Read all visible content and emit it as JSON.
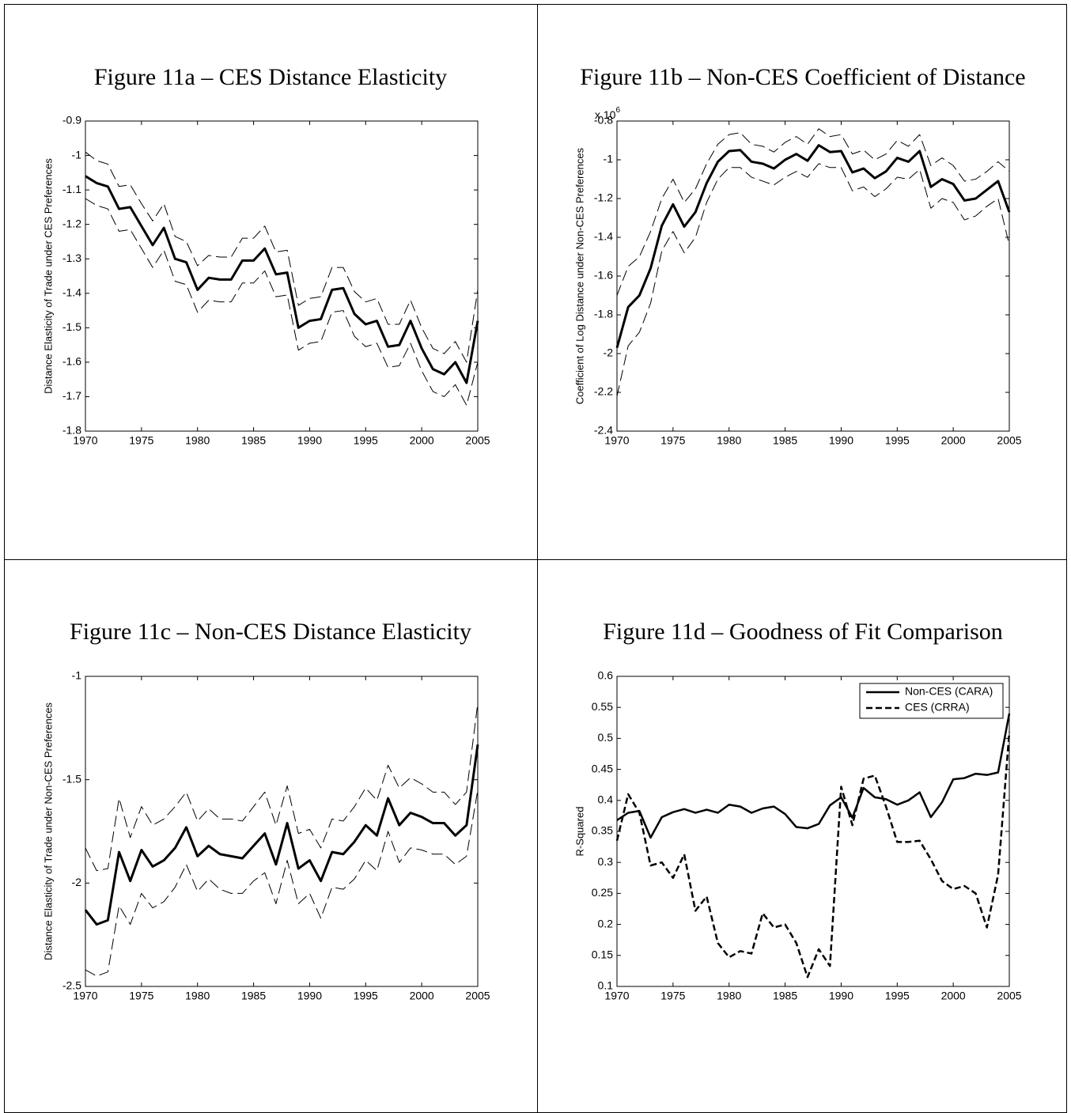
{
  "chart_data": [
    {
      "type": "line",
      "title": "Figure 11a – CES Distance Elasticity",
      "y_label": "Distance Elasticity of Trade under CES Preferences",
      "x": [
        1970,
        1971,
        1972,
        1973,
        1974,
        1975,
        1976,
        1977,
        1978,
        1979,
        1980,
        1981,
        1982,
        1983,
        1984,
        1985,
        1986,
        1987,
        1988,
        1989,
        1990,
        1991,
        1992,
        1993,
        1994,
        1995,
        1996,
        1997,
        1998,
        1999,
        2000,
        2001,
        2002,
        2003,
        2004,
        2005
      ],
      "xlim": [
        1970,
        2005
      ],
      "xticks": [
        1970,
        1975,
        1980,
        1985,
        1990,
        1995,
        2000,
        2005
      ],
      "ylim": [
        -1.8,
        -0.9
      ],
      "yticks": [
        -1.8,
        -1.7,
        -1.6,
        -1.5,
        -1.4,
        -1.3,
        -1.2,
        -1.1,
        -1,
        -0.9
      ],
      "series": [
        {
          "color": "#000000",
          "style": "dashed",
          "line_width": 1,
          "values": [
            -0.99,
            -1.015,
            -1.025,
            -1.09,
            -1.085,
            -1.14,
            -1.19,
            -1.14,
            -1.235,
            -1.25,
            -1.32,
            -1.29,
            -1.295,
            -1.295,
            -1.24,
            -1.24,
            -1.205,
            -1.28,
            -1.275,
            -1.435,
            -1.415,
            -1.41,
            -1.325,
            -1.325,
            -1.395,
            -1.425,
            -1.415,
            -1.49,
            -1.49,
            -1.42,
            -1.5,
            -1.56,
            -1.575,
            -1.54,
            -1.6,
            -1.39
          ]
        },
        {
          "color": "#000000",
          "style": "solid",
          "line_width": 3,
          "values": [
            -1.06,
            -1.08,
            -1.09,
            -1.155,
            -1.15,
            -1.205,
            -1.26,
            -1.21,
            -1.3,
            -1.31,
            -1.39,
            -1.355,
            -1.36,
            -1.36,
            -1.305,
            -1.305,
            -1.27,
            -1.345,
            -1.34,
            -1.5,
            -1.48,
            -1.475,
            -1.39,
            -1.385,
            -1.46,
            -1.49,
            -1.48,
            -1.555,
            -1.55,
            -1.48,
            -1.56,
            -1.62,
            -1.635,
            -1.6,
            -1.66,
            -1.48
          ]
        },
        {
          "color": "#000000",
          "style": "dashed",
          "line_width": 1,
          "values": [
            -1.125,
            -1.145,
            -1.155,
            -1.22,
            -1.215,
            -1.27,
            -1.325,
            -1.275,
            -1.365,
            -1.375,
            -1.455,
            -1.42,
            -1.425,
            -1.425,
            -1.37,
            -1.37,
            -1.335,
            -1.41,
            -1.405,
            -1.565,
            -1.545,
            -1.54,
            -1.455,
            -1.45,
            -1.525,
            -1.555,
            -1.545,
            -1.615,
            -1.61,
            -1.545,
            -1.625,
            -1.685,
            -1.7,
            -1.665,
            -1.725,
            -1.6
          ]
        }
      ]
    },
    {
      "type": "line",
      "title": "Figure 11b – Non-CES Coefficient of Distance",
      "y_label": "Coefficient of Log Distance under Non-CES Preferences",
      "y_offset_text": {
        "base": "x 10",
        "exponent": "6"
      },
      "x": [
        1970,
        1971,
        1972,
        1973,
        1974,
        1975,
        1976,
        1977,
        1978,
        1979,
        1980,
        1981,
        1982,
        1983,
        1984,
        1985,
        1986,
        1987,
        1988,
        1989,
        1990,
        1991,
        1992,
        1993,
        1994,
        1995,
        1996,
        1997,
        1998,
        1999,
        2000,
        2001,
        2002,
        2003,
        2004,
        2005
      ],
      "xlim": [
        1970,
        2005
      ],
      "xticks": [
        1970,
        1975,
        1980,
        1985,
        1990,
        1995,
        2000,
        2005
      ],
      "ylim": [
        -2.4,
        -0.8
      ],
      "yticks": [
        -2.4,
        -2.2,
        -2,
        -1.8,
        -1.6,
        -1.4,
        -1.2,
        -1,
        -0.8
      ],
      "series": [
        {
          "color": "#000000",
          "style": "dashed",
          "line_width": 1,
          "values": [
            -1.7,
            -1.55,
            -1.5,
            -1.37,
            -1.2,
            -1.1,
            -1.22,
            -1.15,
            -1.02,
            -0.92,
            -0.87,
            -0.86,
            -0.92,
            -0.93,
            -0.96,
            -0.91,
            -0.88,
            -0.92,
            -0.84,
            -0.88,
            -0.87,
            -0.97,
            -0.95,
            -1.0,
            -0.97,
            -0.9,
            -0.93,
            -0.87,
            -1.03,
            -0.99,
            -1.03,
            -1.11,
            -1.1,
            -1.06,
            -1.01,
            -1.06
          ]
        },
        {
          "color": "#000000",
          "style": "solid",
          "line_width": 3,
          "values": [
            -1.97,
            -1.76,
            -1.7,
            -1.56,
            -1.34,
            -1.23,
            -1.345,
            -1.27,
            -1.12,
            -1.01,
            -0.955,
            -0.95,
            -1.01,
            -1.02,
            -1.045,
            -1.0,
            -0.97,
            -1.005,
            -0.925,
            -0.96,
            -0.955,
            -1.065,
            -1.045,
            -1.095,
            -1.06,
            -0.99,
            -1.01,
            -0.955,
            -1.14,
            -1.1,
            -1.125,
            -1.21,
            -1.2,
            -1.155,
            -1.11,
            -1.27
          ]
        },
        {
          "color": "#000000",
          "style": "dashed",
          "line_width": 1,
          "values": [
            -2.22,
            -1.96,
            -1.89,
            -1.74,
            -1.47,
            -1.37,
            -1.48,
            -1.4,
            -1.22,
            -1.1,
            -1.04,
            -1.04,
            -1.09,
            -1.11,
            -1.13,
            -1.09,
            -1.06,
            -1.09,
            -1.02,
            -1.04,
            -1.04,
            -1.16,
            -1.14,
            -1.19,
            -1.15,
            -1.09,
            -1.1,
            -1.05,
            -1.25,
            -1.2,
            -1.22,
            -1.31,
            -1.29,
            -1.24,
            -1.2,
            -1.44
          ]
        }
      ]
    },
    {
      "type": "line",
      "title": "Figure 11c – Non-CES Distance Elasticity",
      "y_label": "Distance Elasticity of Trade under Non-CES Preferences",
      "x": [
        1970,
        1971,
        1972,
        1973,
        1974,
        1975,
        1976,
        1977,
        1978,
        1979,
        1980,
        1981,
        1982,
        1983,
        1984,
        1985,
        1986,
        1987,
        1988,
        1989,
        1990,
        1991,
        1992,
        1993,
        1994,
        1995,
        1996,
        1997,
        1998,
        1999,
        2000,
        2001,
        2002,
        2003,
        2004,
        2005
      ],
      "xlim": [
        1970,
        2005
      ],
      "xticks": [
        1970,
        1975,
        1980,
        1985,
        1990,
        1995,
        2000,
        2005
      ],
      "ylim": [
        -2.5,
        -1
      ],
      "yticks": [
        -2.5,
        -2,
        -1.5,
        -1
      ],
      "series": [
        {
          "color": "#000000",
          "style": "dashed",
          "line_width": 1,
          "values": [
            -1.83,
            -1.94,
            -1.93,
            -1.59,
            -1.78,
            -1.63,
            -1.72,
            -1.69,
            -1.63,
            -1.56,
            -1.7,
            -1.64,
            -1.69,
            -1.69,
            -1.7,
            -1.63,
            -1.56,
            -1.72,
            -1.53,
            -1.76,
            -1.74,
            -1.83,
            -1.69,
            -1.7,
            -1.63,
            -1.54,
            -1.6,
            -1.43,
            -1.54,
            -1.49,
            -1.52,
            -1.56,
            -1.56,
            -1.62,
            -1.56,
            -1.13
          ]
        },
        {
          "color": "#000000",
          "style": "solid",
          "line_width": 3,
          "values": [
            -2.13,
            -2.2,
            -2.18,
            -1.85,
            -1.99,
            -1.84,
            -1.92,
            -1.89,
            -1.83,
            -1.73,
            -1.87,
            -1.82,
            -1.86,
            -1.87,
            -1.88,
            -1.82,
            -1.76,
            -1.91,
            -1.71,
            -1.93,
            -1.89,
            -1.99,
            -1.85,
            -1.86,
            -1.8,
            -1.72,
            -1.77,
            -1.59,
            -1.72,
            -1.66,
            -1.68,
            -1.71,
            -1.71,
            -1.77,
            -1.72,
            -1.33
          ]
        },
        {
          "color": "#000000",
          "style": "dashed",
          "line_width": 1,
          "values": [
            -2.42,
            -2.45,
            -2.43,
            -2.11,
            -2.2,
            -2.05,
            -2.12,
            -2.09,
            -2.02,
            -1.91,
            -2.04,
            -1.98,
            -2.03,
            -2.05,
            -2.05,
            -1.99,
            -1.95,
            -2.1,
            -1.89,
            -2.1,
            -2.05,
            -2.17,
            -2.02,
            -2.03,
            -1.98,
            -1.89,
            -1.94,
            -1.75,
            -1.9,
            -1.83,
            -1.84,
            -1.86,
            -1.86,
            -1.91,
            -1.87,
            -1.55
          ]
        }
      ]
    },
    {
      "type": "line",
      "title": "Figure 11d – Goodness of Fit Comparison",
      "y_label": "R-Squared",
      "legend": "upper right",
      "x": [
        1970,
        1971,
        1972,
        1973,
        1974,
        1975,
        1976,
        1977,
        1978,
        1979,
        1980,
        1981,
        1982,
        1983,
        1984,
        1985,
        1986,
        1987,
        1988,
        1989,
        1990,
        1991,
        1992,
        1993,
        1994,
        1995,
        1996,
        1997,
        1998,
        1999,
        2000,
        2001,
        2002,
        2003,
        2004,
        2005
      ],
      "xlim": [
        1970,
        2005
      ],
      "xticks": [
        1970,
        1975,
        1980,
        1985,
        1990,
        1995,
        2000,
        2005
      ],
      "ylim": [
        0.1,
        0.6
      ],
      "yticks": [
        0.1,
        0.15,
        0.2,
        0.25,
        0.3,
        0.35,
        0.4,
        0.45,
        0.5,
        0.55,
        0.6
      ],
      "series": [
        {
          "name": "Non-CES (CARA)",
          "color": "#000000",
          "style": "solid",
          "line_width": 2.5,
          "values": [
            0.368,
            0.38,
            0.383,
            0.34,
            0.373,
            0.381,
            0.386,
            0.38,
            0.385,
            0.38,
            0.393,
            0.39,
            0.38,
            0.387,
            0.39,
            0.378,
            0.357,
            0.355,
            0.362,
            0.392,
            0.405,
            0.372,
            0.42,
            0.405,
            0.402,
            0.393,
            0.4,
            0.413,
            0.373,
            0.397,
            0.434,
            0.436,
            0.443,
            0.441,
            0.445,
            0.54
          ]
        },
        {
          "name": "CES (CRRA)",
          "color": "#000000",
          "style": "dashed",
          "line_width": 2.5,
          "values": [
            0.335,
            0.41,
            0.38,
            0.295,
            0.3,
            0.275,
            0.313,
            0.222,
            0.245,
            0.17,
            0.147,
            0.157,
            0.153,
            0.218,
            0.195,
            0.2,
            0.17,
            0.115,
            0.16,
            0.133,
            0.422,
            0.36,
            0.435,
            0.44,
            0.39,
            0.333,
            0.333,
            0.335,
            0.305,
            0.27,
            0.257,
            0.262,
            0.25,
            0.195,
            0.28,
            0.51
          ]
        }
      ]
    }
  ]
}
